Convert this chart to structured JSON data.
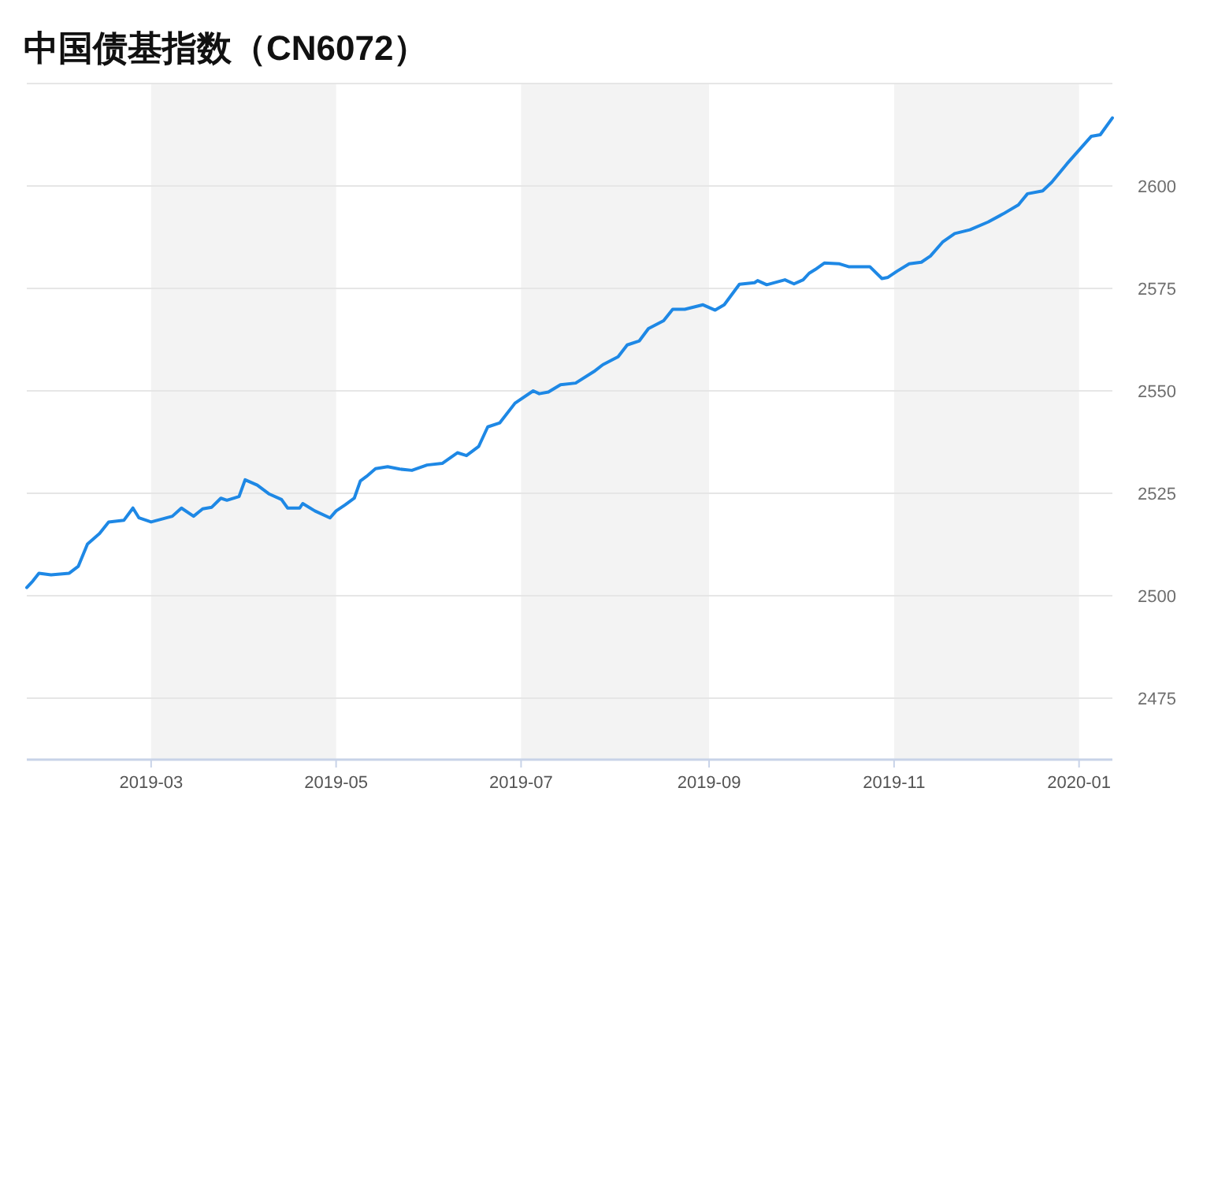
{
  "chart_data": {
    "type": "line",
    "title": "中国债基指数（CN6072）",
    "x": [
      "2019-01-19",
      "2019-01-21",
      "2019-01-23",
      "2019-01-27",
      "2019-02-02",
      "2019-02-05",
      "2019-02-08",
      "2019-02-12",
      "2019-02-15",
      "2019-02-20",
      "2019-02-23",
      "2019-02-25",
      "2019-03-01",
      "2019-03-08",
      "2019-03-11",
      "2019-03-15",
      "2019-03-18",
      "2019-03-21",
      "2019-03-24",
      "2019-03-26",
      "2019-03-30",
      "2019-04-01",
      "2019-04-05",
      "2019-04-09",
      "2019-04-13",
      "2019-04-15",
      "2019-04-19",
      "2019-04-20",
      "2019-04-24",
      "2019-04-29",
      "2019-05-01",
      "2019-05-04",
      "2019-05-07",
      "2019-05-09",
      "2019-05-11",
      "2019-05-14",
      "2019-05-18",
      "2019-05-22",
      "2019-05-26",
      "2019-05-31",
      "2019-06-05",
      "2019-06-10",
      "2019-06-13",
      "2019-06-17",
      "2019-06-20",
      "2019-06-24",
      "2019-06-29",
      "2019-07-05",
      "2019-07-07",
      "2019-07-10",
      "2019-07-14",
      "2019-07-19",
      "2019-07-25",
      "2019-07-28",
      "2019-08-02",
      "2019-08-05",
      "2019-08-09",
      "2019-08-12",
      "2019-08-17",
      "2019-08-20",
      "2019-08-24",
      "2019-08-30",
      "2019-09-03",
      "2019-09-06",
      "2019-09-11",
      "2019-09-16",
      "2019-09-17",
      "2019-09-20",
      "2019-09-26",
      "2019-09-29",
      "2019-10-02",
      "2019-10-04",
      "2019-10-06",
      "2019-10-09",
      "2019-10-14",
      "2019-10-17",
      "2019-10-24",
      "2019-10-28",
      "2019-10-30",
      "2019-11-02",
      "2019-11-06",
      "2019-11-10",
      "2019-11-13",
      "2019-11-17",
      "2019-11-21",
      "2019-11-26",
      "2019-12-02",
      "2019-12-07",
      "2019-12-12",
      "2019-12-15",
      "2019-12-20",
      "2019-12-23",
      "2019-12-28",
      "2020-01-02",
      "2020-01-05",
      "2020-01-08",
      "2020-01-12"
    ],
    "series": [
      {
        "color": "#1e88e5",
        "values": [
          2502.0,
          2503.6,
          2505.5,
          2505.1,
          2505.5,
          2507.2,
          2512.6,
          2515.2,
          2518.0,
          2518.4,
          2521.4,
          2519.0,
          2518.0,
          2519.4,
          2521.4,
          2519.4,
          2521.2,
          2521.6,
          2523.8,
          2523.3,
          2524.2,
          2528.3,
          2527.0,
          2524.8,
          2523.5,
          2521.4,
          2521.4,
          2522.5,
          2520.7,
          2519.0,
          2520.7,
          2522.2,
          2523.8,
          2528.0,
          2529.1,
          2531.0,
          2531.5,
          2530.9,
          2530.6,
          2531.9,
          2532.3,
          2534.9,
          2534.2,
          2536.4,
          2541.2,
          2542.2,
          2547.0,
          2550.0,
          2549.3,
          2549.7,
          2551.5,
          2551.9,
          2554.7,
          2556.4,
          2558.3,
          2561.2,
          2562.2,
          2565.2,
          2567.1,
          2569.9,
          2569.9,
          2571.0,
          2569.7,
          2571.0,
          2576.0,
          2576.4,
          2576.9,
          2575.9,
          2577.1,
          2576.1,
          2577.1,
          2578.7,
          2579.6,
          2581.2,
          2581.0,
          2580.3,
          2580.3,
          2577.4,
          2577.7,
          2579.2,
          2581.0,
          2581.4,
          2582.9,
          2586.3,
          2588.4,
          2589.3,
          2591.2,
          2593.2,
          2595.4,
          2598.1,
          2598.8,
          2600.9,
          2605.4,
          2609.6,
          2612.1,
          2612.5,
          2616.6
        ]
      }
    ],
    "xlim": [
      "2019-01-19",
      "2020-01-12"
    ],
    "xticks": [
      {
        "value": "2019-03-01",
        "label": "2019-03"
      },
      {
        "value": "2019-05-01",
        "label": "2019-05"
      },
      {
        "value": "2019-07-01",
        "label": "2019-07"
      },
      {
        "value": "2019-09-01",
        "label": "2019-09"
      },
      {
        "value": "2019-11-01",
        "label": "2019-11"
      },
      {
        "value": "2020-01-01",
        "label": "2020-01"
      }
    ],
    "ylim": [
      2460,
      2625
    ],
    "yticks": [
      2475,
      2500,
      2525,
      2550,
      2575,
      2600,
      {
        "value": 2625,
        "label": null
      }
    ],
    "bands": [
      {
        "axis": "x",
        "from": "2019-03-01",
        "to": "2019-05-01",
        "color": "#f3f3f3"
      },
      {
        "axis": "x",
        "from": "2019-07-01",
        "to": "2019-09-01",
        "color": "#f3f3f3"
      },
      {
        "axis": "x",
        "from": "2019-11-01",
        "to": "2020-01-01",
        "color": "#f3f3f3"
      }
    ],
    "grid": "y",
    "marker": "none",
    "line_style": "solid"
  }
}
